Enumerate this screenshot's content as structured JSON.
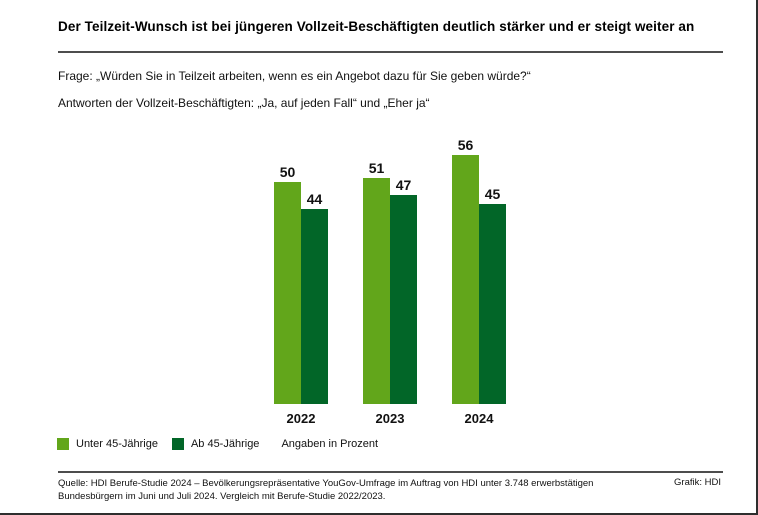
{
  "page": {
    "title": "Der Teilzeit-Wunsch ist bei jüngeren Vollzeit-Beschäftigten deutlich stärker und er steigt weiter an",
    "question": "Frage: „Würden Sie in Teilzeit arbeiten, wenn es ein Angebot dazu für Sie geben würde?“",
    "answers_note": "Antworten der Vollzeit-Beschäftigten: „Ja, auf jeden Fall“ und „Eher ja“"
  },
  "chart_data": {
    "type": "bar",
    "categories": [
      "2022",
      "2023",
      "2024"
    ],
    "series": [
      {
        "name": "Unter 45-Jährige",
        "color": "#62A61B",
        "values": [
          50,
          51,
          56
        ]
      },
      {
        "name": "Ab 45-Jährige",
        "color": "#026628",
        "values": [
          44,
          47,
          45
        ]
      }
    ],
    "unit_note": "Angaben in Prozent",
    "value_labels": true,
    "xlabel": "",
    "ylabel": "",
    "ylim": [
      0,
      60
    ],
    "grid": false,
    "axes_visible": false,
    "legend_position": "bottom-left"
  },
  "footer": {
    "source_line1": "Quelle: HDI Berufe-Studie 2024 – Bevölkerungsrepräsentative YouGov-Umfrage im Auftrag von HDI unter 3.748 erwerbstätigen",
    "source_line2": "Bundesbürgern im Juni und Juli 2024. Vergleich mit Berufe-Studie 2022/2023.",
    "credit": "Grafik: HDI"
  },
  "colors": {
    "divider": "#4d4d4d",
    "frame": "#2e2e2e",
    "text": "#111111"
  }
}
